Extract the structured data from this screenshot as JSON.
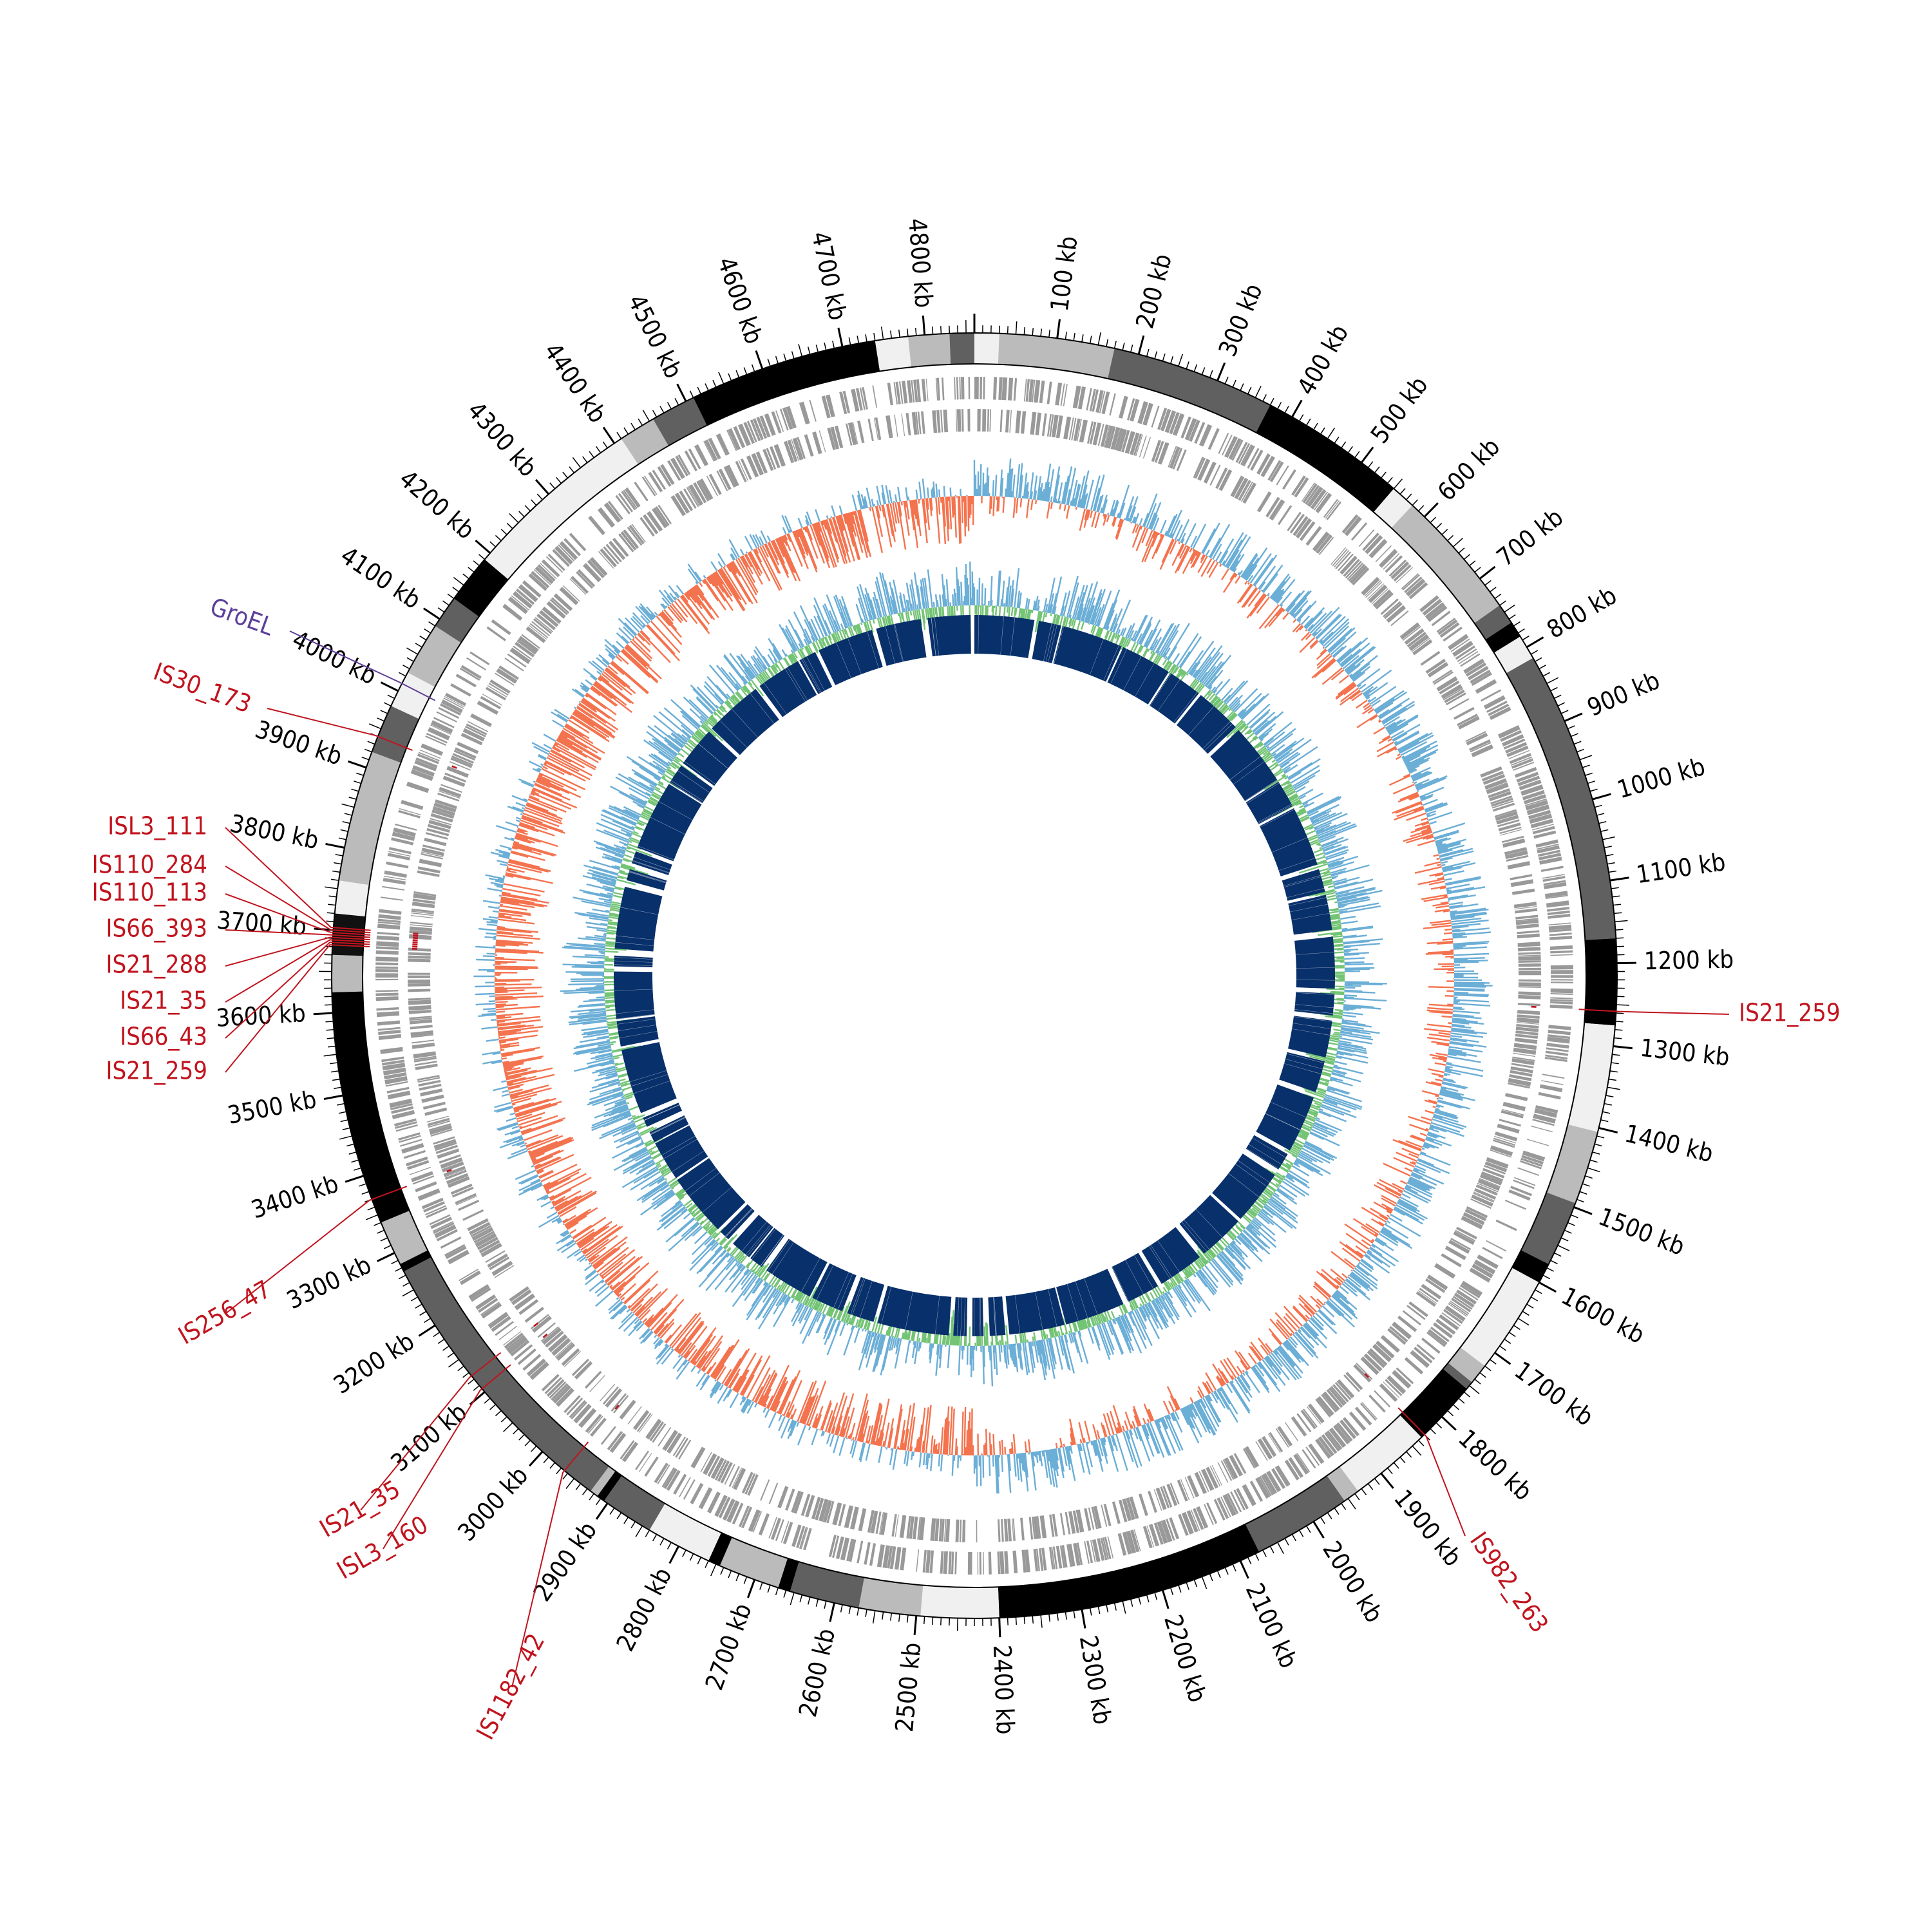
{
  "genome": {
    "length_kb": 4860,
    "tick_labels": [
      {
        "pos": 100,
        "text": "100 kb"
      },
      {
        "pos": 200,
        "text": "200 kb"
      },
      {
        "pos": 300,
        "text": "300 kb"
      },
      {
        "pos": 400,
        "text": "400 kb"
      },
      {
        "pos": 500,
        "text": "500 kb"
      },
      {
        "pos": 600,
        "text": "600 kb"
      },
      {
        "pos": 700,
        "text": "700 kb"
      },
      {
        "pos": 800,
        "text": "800 kb"
      },
      {
        "pos": 900,
        "text": "900 kb"
      },
      {
        "pos": 1000,
        "text": "1000 kb"
      },
      {
        "pos": 1100,
        "text": "1100 kb"
      },
      {
        "pos": 1200,
        "text": "1200 kb"
      },
      {
        "pos": 1300,
        "text": "1300 kb"
      },
      {
        "pos": 1400,
        "text": "1400 kb"
      },
      {
        "pos": 1500,
        "text": "1500 kb"
      },
      {
        "pos": 1600,
        "text": "1600 kb"
      },
      {
        "pos": 1700,
        "text": "1700 kb"
      },
      {
        "pos": 1800,
        "text": "1800 kb"
      },
      {
        "pos": 1900,
        "text": "1900 kb"
      },
      {
        "pos": 2000,
        "text": "2000 kb"
      },
      {
        "pos": 2100,
        "text": "2100 kb"
      },
      {
        "pos": 2200,
        "text": "2200 kb"
      },
      {
        "pos": 2300,
        "text": "2300 kb"
      },
      {
        "pos": 2400,
        "text": "2400 kb"
      },
      {
        "pos": 2500,
        "text": "2500 kb"
      },
      {
        "pos": 2600,
        "text": "2600 kb"
      },
      {
        "pos": 2700,
        "text": "2700 kb"
      },
      {
        "pos": 2800,
        "text": "2800 kb"
      },
      {
        "pos": 2900,
        "text": "2900 kb"
      },
      {
        "pos": 3000,
        "text": "3000 kb"
      },
      {
        "pos": 3100,
        "text": "3100 kb"
      },
      {
        "pos": 3200,
        "text": "3200 kb"
      },
      {
        "pos": 3300,
        "text": "3300 kb"
      },
      {
        "pos": 3400,
        "text": "3400 kb"
      },
      {
        "pos": 3500,
        "text": "3500 kb"
      },
      {
        "pos": 3600,
        "text": "3600 kb"
      },
      {
        "pos": 3700,
        "text": "3700 kb"
      },
      {
        "pos": 3800,
        "text": "3800 kb"
      },
      {
        "pos": 3900,
        "text": "3900 kb"
      },
      {
        "pos": 4000,
        "text": "4000 kb"
      },
      {
        "pos": 4100,
        "text": "4100 kb"
      },
      {
        "pos": 4200,
        "text": "4200 kb"
      },
      {
        "pos": 4300,
        "text": "4300 kb"
      },
      {
        "pos": 4400,
        "text": "4400 kb"
      },
      {
        "pos": 4500,
        "text": "4500 kb"
      },
      {
        "pos": 4600,
        "text": "4600 kb"
      },
      {
        "pos": 4700,
        "text": "4700 kb"
      },
      {
        "pos": 4800,
        "text": "4800 kb"
      }
    ]
  },
  "contig_bands": [
    {
      "start": 0,
      "end": 30,
      "shade": "#f0f0f0"
    },
    {
      "start": 30,
      "end": 170,
      "shade": "#bbbbbb"
    },
    {
      "start": 170,
      "end": 370,
      "shade": "#606060"
    },
    {
      "start": 370,
      "end": 550,
      "shade": "#000000"
    },
    {
      "start": 550,
      "end": 580,
      "shade": "#f0f0f0"
    },
    {
      "start": 580,
      "end": 740,
      "shade": "#bbbbbb"
    },
    {
      "start": 740,
      "end": 765,
      "shade": "#606060"
    },
    {
      "start": 765,
      "end": 785,
      "shade": "#000000"
    },
    {
      "start": 785,
      "end": 815,
      "shade": "#f0f0f0"
    },
    {
      "start": 815,
      "end": 1170,
      "shade": "#606060"
    },
    {
      "start": 1170,
      "end": 1275,
      "shade": "#000000"
    },
    {
      "start": 1275,
      "end": 1405,
      "shade": "#f0f0f0"
    },
    {
      "start": 1405,
      "end": 1495,
      "shade": "#bbbbbb"
    },
    {
      "start": 1495,
      "end": 1575,
      "shade": "#606060"
    },
    {
      "start": 1575,
      "end": 1600,
      "shade": "#000000"
    },
    {
      "start": 1600,
      "end": 1720,
      "shade": "#f0f0f0"
    },
    {
      "start": 1720,
      "end": 1745,
      "shade": "#bbbbbb"
    },
    {
      "start": 1745,
      "end": 1755,
      "shade": "#606060"
    },
    {
      "start": 1755,
      "end": 1835,
      "shade": "#000000"
    },
    {
      "start": 1835,
      "end": 1935,
      "shade": "#f0f0f0"
    },
    {
      "start": 1935,
      "end": 1955,
      "shade": "#bbbbbb"
    },
    {
      "start": 1955,
      "end": 2075,
      "shade": "#606060"
    },
    {
      "start": 2075,
      "end": 2400,
      "shade": "#000000"
    },
    {
      "start": 2400,
      "end": 2495,
      "shade": "#f0f0f0"
    },
    {
      "start": 2495,
      "end": 2570,
      "shade": "#bbbbbb"
    },
    {
      "start": 2570,
      "end": 2655,
      "shade": "#606060"
    },
    {
      "start": 2655,
      "end": 2670,
      "shade": "#000000"
    },
    {
      "start": 2670,
      "end": 2745,
      "shade": "#bbbbbb"
    },
    {
      "start": 2745,
      "end": 2760,
      "shade": "#000000"
    },
    {
      "start": 2760,
      "end": 2840,
      "shade": "#f0f0f0"
    },
    {
      "start": 2840,
      "end": 2905,
      "shade": "#606060"
    },
    {
      "start": 2905,
      "end": 2915,
      "shade": "#000000"
    },
    {
      "start": 2915,
      "end": 2925,
      "shade": "#bbbbbb"
    },
    {
      "start": 2925,
      "end": 3275,
      "shade": "#606060"
    },
    {
      "start": 3275,
      "end": 3285,
      "shade": "#000000"
    },
    {
      "start": 3285,
      "end": 3340,
      "shade": "#bbbbbb"
    },
    {
      "start": 3340,
      "end": 3625,
      "shade": "#000000"
    },
    {
      "start": 3625,
      "end": 3670,
      "shade": "#bbbbbb"
    },
    {
      "start": 3670,
      "end": 3720,
      "shade": "#111111"
    },
    {
      "start": 3720,
      "end": 3760,
      "shade": "#f0f0f0"
    },
    {
      "start": 3760,
      "end": 3920,
      "shade": "#bbbbbb"
    },
    {
      "start": 3920,
      "end": 3980,
      "shade": "#606060"
    },
    {
      "start": 3980,
      "end": 4025,
      "shade": "#f0f0f0"
    },
    {
      "start": 4025,
      "end": 4090,
      "shade": "#bbbbbb"
    },
    {
      "start": 4090,
      "end": 4130,
      "shade": "#606060"
    },
    {
      "start": 4130,
      "end": 4190,
      "shade": "#000000"
    },
    {
      "start": 4190,
      "end": 4410,
      "shade": "#f0f0f0"
    },
    {
      "start": 4410,
      "end": 4455,
      "shade": "#bbbbbb"
    },
    {
      "start": 4455,
      "end": 4510,
      "shade": "#606060"
    },
    {
      "start": 4510,
      "end": 4740,
      "shade": "#000000"
    },
    {
      "start": 4740,
      "end": 4780,
      "shade": "#f0f0f0"
    },
    {
      "start": 4780,
      "end": 4830,
      "shade": "#bbbbbb"
    },
    {
      "start": 4830,
      "end": 4860,
      "shade": "#606060"
    }
  ],
  "annotations": [
    {
      "id": "is21-259-right",
      "pos": 1258,
      "label": "IS21_259",
      "color": "#c0141e"
    },
    {
      "id": "is982-263",
      "pos": 1830,
      "label": "IS982_263",
      "color": "#c0141e"
    },
    {
      "id": "is1182-42",
      "pos": 2965,
      "label": "IS1182_42",
      "color": "#c0141e"
    },
    {
      "id": "is3-160",
      "pos": 3105,
      "label": "ISL3_160",
      "color": "#c0141e"
    },
    {
      "id": "is21-35-lower",
      "pos": 3125,
      "label": "IS21_35",
      "color": "#c0141e"
    },
    {
      "id": "is256-47",
      "pos": 3370,
      "label": "IS256_47",
      "color": "#c0141e"
    },
    {
      "id": "is21-259-left",
      "pos": 3682,
      "label": "IS21_259",
      "color": "#c0141e"
    },
    {
      "id": "is66-43",
      "pos": 3685,
      "label": "IS66_43",
      "color": "#c0141e"
    },
    {
      "id": "is21-35-left",
      "pos": 3688,
      "label": "IS21_35",
      "color": "#c0141e"
    },
    {
      "id": "is21-288",
      "pos": 3691,
      "label": "IS21_288",
      "color": "#c0141e"
    },
    {
      "id": "is66-393",
      "pos": 3694,
      "label": "IS66_393",
      "color": "#c0141e"
    },
    {
      "id": "is110-113",
      "pos": 3697,
      "label": "IS110_113",
      "color": "#c0141e"
    },
    {
      "id": "is110-284",
      "pos": 3700,
      "label": "IS110_284",
      "color": "#c0141e"
    },
    {
      "id": "isl3-111",
      "pos": 3703,
      "label": "ISL3_111",
      "color": "#c0141e"
    },
    {
      "id": "is30-173",
      "pos": 3940,
      "label": "IS30_173",
      "color": "#c0141e"
    },
    {
      "id": "groel",
      "pos": 4010,
      "label": "GroEL",
      "color": "#5b3f9a"
    }
  ],
  "colors": {
    "gene_track": "#999999",
    "gc_skew_pos": "#f4734f",
    "gc_skew_neg": "#6baed6",
    "gc_content_pos": "#74c476",
    "gc_content_neg": "#6baed6",
    "blast_hits": "#08306b",
    "is_marker": "#c0141e"
  }
}
